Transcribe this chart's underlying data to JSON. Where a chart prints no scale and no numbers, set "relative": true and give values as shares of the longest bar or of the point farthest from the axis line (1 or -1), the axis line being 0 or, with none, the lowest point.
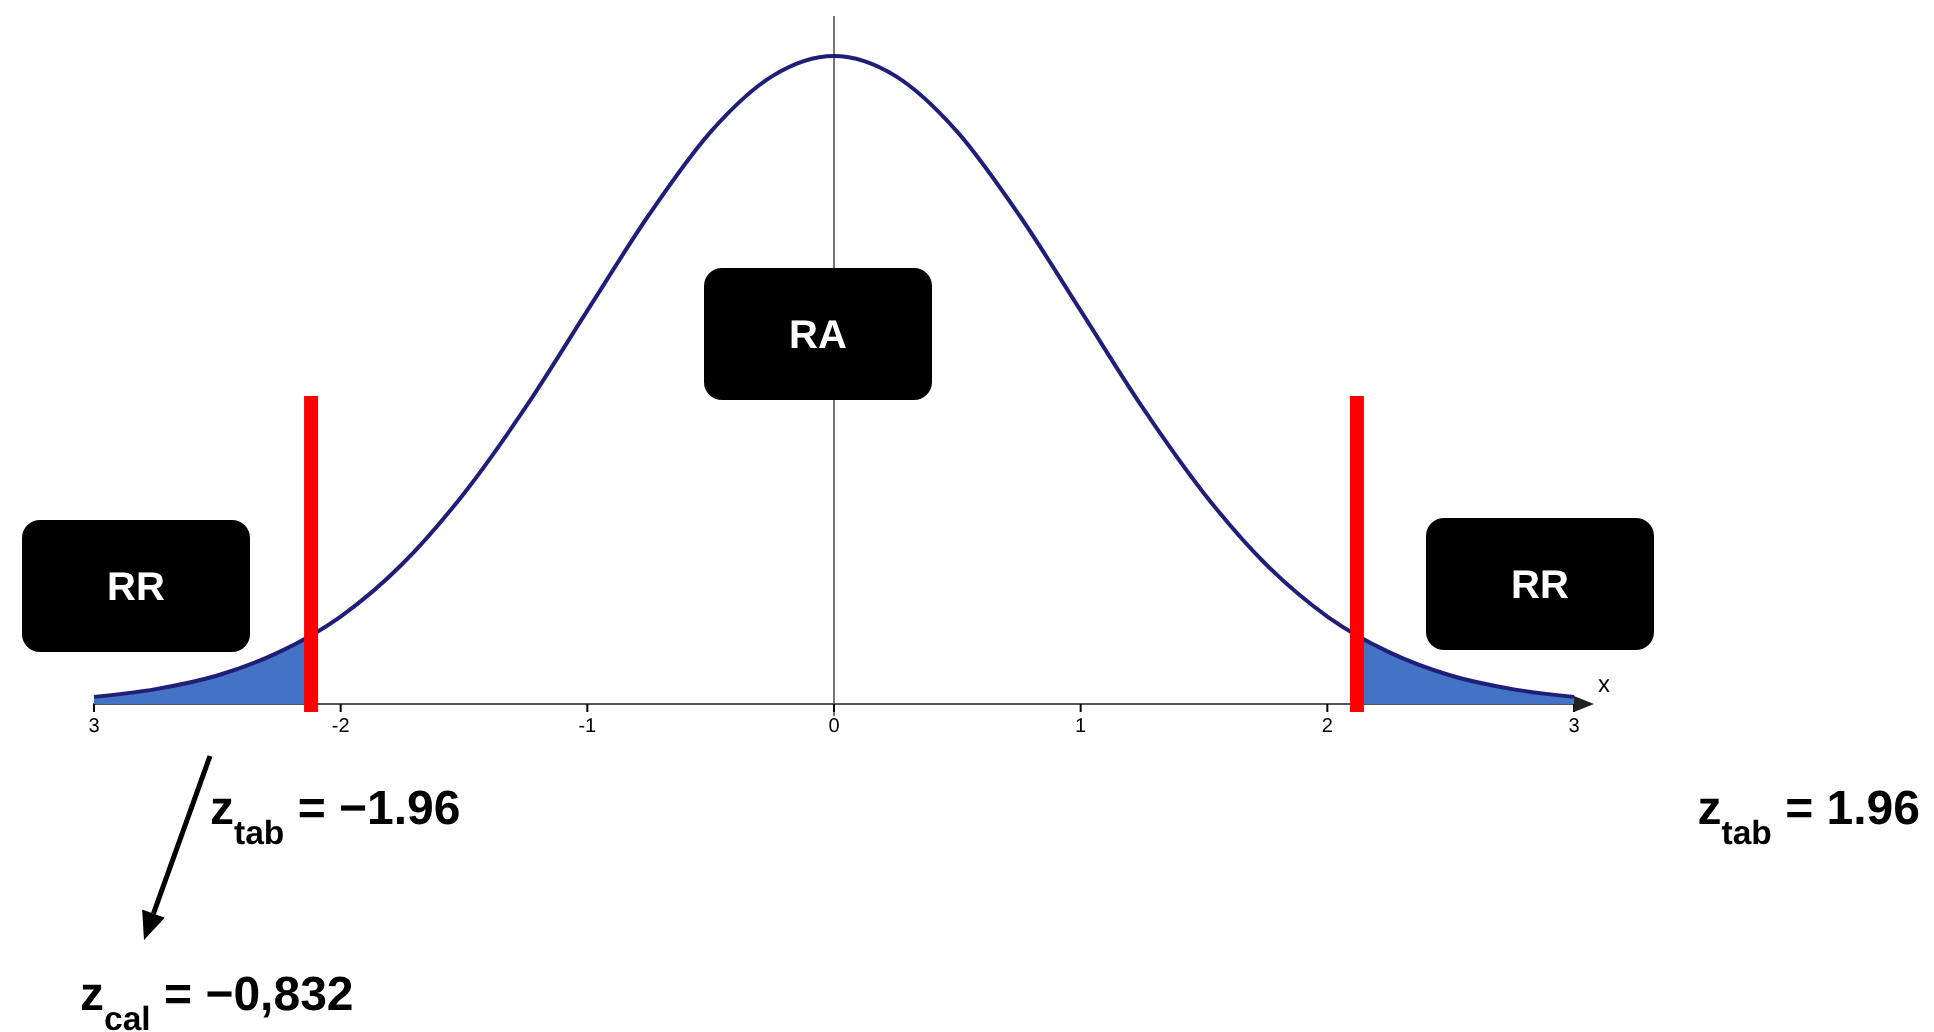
{
  "chart_data": {
    "type": "line",
    "relative": true,
    "xlabel": "x",
    "xlim": [
      -3,
      3
    ],
    "xticks": [
      {
        "value": -3,
        "label": "3"
      },
      -2,
      -1,
      0,
      1,
      2,
      3
    ],
    "series": [
      {
        "type": "area",
        "color": "#4472c4",
        "x": [
          -3,
          -2.75,
          -2.5,
          -2.25,
          -2.12
        ],
        "values": [
          0.011,
          0.023,
          0.044,
          0.08,
          0.106
        ]
      },
      {
        "type": "area",
        "color": "#4472c4",
        "x": [
          2.12,
          2.25,
          2.5,
          2.75,
          3
        ],
        "values": [
          0.106,
          0.08,
          0.044,
          0.023,
          0.011
        ]
      },
      {
        "color": "#1f1f7a",
        "x": [
          -3,
          -2.75,
          -2.5,
          -2.25,
          -2,
          -1.75,
          -1.5,
          -1.25,
          -1,
          -0.75,
          -0.5,
          -0.25,
          0,
          0.25,
          0.5,
          0.75,
          1,
          1.25,
          1.5,
          1.75,
          2,
          2.25,
          2.5,
          2.75,
          3
        ],
        "values": [
          0.011,
          0.023,
          0.044,
          0.08,
          0.135,
          0.216,
          0.325,
          0.458,
          0.607,
          0.755,
          0.883,
          0.969,
          1,
          0.969,
          0.883,
          0.755,
          0.607,
          0.458,
          0.325,
          0.216,
          0.135,
          0.08,
          0.044,
          0.023,
          0.011
        ]
      }
    ],
    "ref_lines": [
      {
        "axis": "x",
        "value": -2.12,
        "color": "#ff0000"
      },
      {
        "axis": "x",
        "value": 2.12,
        "color": "#ff0000"
      }
    ],
    "annotations": [
      "RA",
      "RR",
      "RR",
      "z$_{tab}$ = −1.96",
      "z$_{tab}$ = 1.96",
      "z$_{cal}$ = −0,832"
    ]
  }
}
